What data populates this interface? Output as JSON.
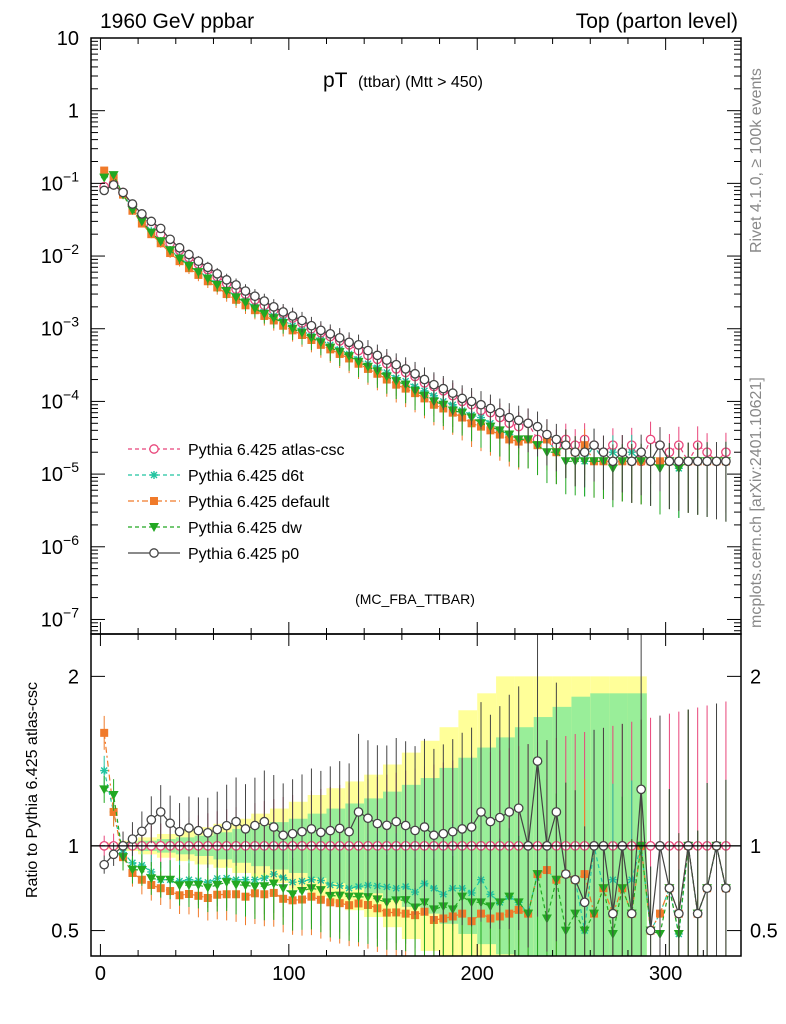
{
  "chart_data": {
    "type": "line",
    "header_left": "1960 GeV ppbar",
    "header_right": "Top (parton level)",
    "title_main": "pT",
    "title_sub": "(ttbar) (Mtt > 450)",
    "analysis_tag": "(MC_FBA_TTBAR)",
    "side_label_top": "Rivet 4.1.0, ≥ 100k events",
    "side_label_bottom": "mcplots.cern.ch [arXiv:2401.10621]",
    "ratio_ylabel": "Ratio to Pythia 6.425 atlas-csc",
    "xlim": [
      -5,
      340
    ],
    "top_ylim_log10": [
      -7.2,
      1
    ],
    "ratio_ylim": [
      0.35,
      2.25
    ],
    "x_ticks": [
      "0",
      "100",
      "200",
      "300"
    ],
    "x_tick_values": [
      0,
      100,
      200,
      300
    ],
    "y_ticks_top": [
      {
        "base": "10",
        "exp": "",
        "value": 1
      },
      {
        "base": "1",
        "exp": "",
        "value": 0
      },
      {
        "base": "10",
        "exp": "−1",
        "value": -1
      },
      {
        "base": "10",
        "exp": "−2",
        "value": -2
      },
      {
        "base": "10",
        "exp": "−3",
        "value": -3
      },
      {
        "base": "10",
        "exp": "−4",
        "value": -4
      },
      {
        "base": "10",
        "exp": "−5",
        "value": -5
      },
      {
        "base": "10",
        "exp": "−6",
        "value": -6
      },
      {
        "base": "10",
        "exp": "−7",
        "value": -7
      }
    ],
    "y_ticks_ratio": [
      {
        "label": "2",
        "value": 2
      },
      {
        "label": "1",
        "value": 1
      },
      {
        "label": "0.5",
        "value": 0.5
      }
    ],
    "x": [
      2,
      7,
      12,
      17,
      22,
      27,
      32,
      37,
      42,
      47,
      52,
      57,
      62,
      67,
      72,
      77,
      82,
      87,
      92,
      97,
      102,
      107,
      112,
      117,
      122,
      127,
      132,
      137,
      142,
      147,
      152,
      157,
      162,
      167,
      172,
      177,
      182,
      187,
      192,
      197,
      202,
      207,
      212,
      217,
      222,
      227,
      232,
      237,
      242,
      247,
      252,
      257,
      262,
      267,
      272,
      277,
      282,
      287,
      292,
      297,
      302,
      307,
      312,
      317,
      322,
      327,
      332
    ],
    "band_x": [
      0,
      10,
      20,
      30,
      40,
      50,
      60,
      70,
      80,
      90,
      100,
      110,
      120,
      130,
      140,
      150,
      160,
      170,
      180,
      190,
      200,
      210,
      220,
      230,
      240,
      250,
      260,
      270,
      280
    ],
    "band_yellow": [
      0.02,
      0.03,
      0.05,
      0.07,
      0.09,
      0.11,
      0.13,
      0.16,
      0.19,
      0.22,
      0.26,
      0.3,
      0.34,
      0.38,
      0.42,
      0.48,
      0.55,
      0.62,
      0.7,
      0.8,
      0.9,
      1.0,
      1.0,
      1.0,
      1.0,
      1.0,
      1.0,
      1.0,
      1.0
    ],
    "band_green": [
      0.01,
      0.02,
      0.03,
      0.04,
      0.05,
      0.06,
      0.08,
      0.1,
      0.12,
      0.14,
      0.16,
      0.19,
      0.22,
      0.25,
      0.28,
      0.32,
      0.36,
      0.4,
      0.46,
      0.52,
      0.58,
      0.64,
      0.7,
      0.76,
      0.82,
      0.88,
      0.9,
      0.9,
      0.9
    ],
    "series": [
      {
        "name": "Pythia 6.425 atlas-csc",
        "color": "#e8457a",
        "marker": "circle-open",
        "dash": "4,3",
        "values": [
          0.09,
          0.1,
          0.075,
          0.05,
          0.035,
          0.026,
          0.02,
          0.015,
          0.012,
          0.0095,
          0.0078,
          0.0065,
          0.0052,
          0.0042,
          0.0035,
          0.003,
          0.0025,
          0.0021,
          0.0018,
          0.0016,
          0.0014,
          0.0012,
          0.001,
          0.00088,
          0.00078,
          0.00068,
          0.0006,
          0.0005,
          0.00043,
          0.00038,
          0.00033,
          0.00028,
          0.00025,
          0.00022,
          0.00018,
          0.00016,
          0.00014,
          0.00012,
          0.0001,
          9e-05,
          7.5e-05,
          7e-05,
          6e-05,
          5e-05,
          4.5e-05,
          5e-05,
          3e-05,
          3.5e-05,
          2.5e-05,
          3e-05,
          2.5e-05,
          3e-05,
          2.5e-05,
          2e-05,
          2.5e-05,
          2e-05,
          2.5e-05,
          1.5e-05,
          3e-05,
          2.5e-05,
          2e-05,
          2.5e-05,
          1.5e-05,
          2.5e-05,
          2e-05,
          1.5e-05,
          2e-05
        ]
      },
      {
        "name": "Pythia 6.425 d6t",
        "color": "#22c4a0",
        "marker": "star",
        "dash": "4,3",
        "values": [
          0.13,
          0.12,
          0.072,
          0.045,
          0.031,
          0.022,
          0.016,
          0.012,
          0.0095,
          0.0076,
          0.0062,
          0.0051,
          0.0042,
          0.0034,
          0.0028,
          0.0024,
          0.002,
          0.0017,
          0.0015,
          0.0013,
          0.0011,
          0.00095,
          0.0008,
          0.0007,
          0.0006,
          0.00052,
          0.00045,
          0.00038,
          0.00033,
          0.00029,
          0.00025,
          0.00021,
          0.00019,
          0.00016,
          0.00014,
          0.00012,
          0.0001,
          9e-05,
          7.5e-05,
          6.5e-05,
          6e-05,
          5e-05,
          4e-05,
          3.5e-05,
          3e-05,
          3e-05,
          2.5e-05,
          3e-05,
          2e-05,
          2.5e-05,
          2e-05,
          1.5e-05,
          2.5e-05,
          1.5e-05,
          2e-05,
          1.5e-05,
          2e-05,
          1.5e-05,
          1.5e-05,
          1.5e-05,
          1.5e-05,
          1.2e-05,
          1.5e-05,
          1.5e-05,
          1.5e-05,
          1.5e-05,
          1.5e-05
        ]
      },
      {
        "name": "Pythia 6.425 default",
        "color": "#f07a2a",
        "marker": "square",
        "dash": "6,3,2,3",
        "values": [
          0.15,
          0.12,
          0.07,
          0.042,
          0.028,
          0.02,
          0.015,
          0.011,
          0.0085,
          0.0068,
          0.0055,
          0.0045,
          0.0037,
          0.003,
          0.0025,
          0.0021,
          0.0018,
          0.0015,
          0.0013,
          0.0011,
          0.00095,
          0.00082,
          0.0007,
          0.0006,
          0.00052,
          0.00045,
          0.00039,
          0.00033,
          0.00028,
          0.00024,
          0.0002,
          0.00017,
          0.00015,
          0.00013,
          0.00011,
          9e-05,
          8e-05,
          7e-05,
          6e-05,
          5e-05,
          4.5e-05,
          4e-05,
          3.5e-05,
          3e-05,
          2.8e-05,
          3e-05,
          2.5e-05,
          3e-05,
          2e-05,
          2.5e-05,
          2e-05,
          2.5e-05,
          1.5e-05,
          1.5e-05,
          1.5e-05,
          1.5e-05,
          1.5e-05,
          1.5e-05,
          1.5e-05,
          1.5e-05,
          1.5e-05,
          1.5e-05,
          1.5e-05,
          1.5e-05,
          1.5e-05,
          1.5e-05,
          1.5e-05
        ]
      },
      {
        "name": "Pythia 6.425 dw",
        "color": "#22a822",
        "marker": "triangle-down",
        "dash": "4,3",
        "values": [
          0.12,
          0.13,
          0.07,
          0.043,
          0.03,
          0.021,
          0.016,
          0.012,
          0.0092,
          0.0073,
          0.006,
          0.0049,
          0.004,
          0.0033,
          0.0027,
          0.0023,
          0.0019,
          0.0016,
          0.0014,
          0.0012,
          0.001,
          0.00088,
          0.00075,
          0.00065,
          0.00055,
          0.00048,
          0.00042,
          0.00035,
          0.0003,
          0.00026,
          0.00022,
          0.00019,
          0.00017,
          0.00014,
          0.00012,
          0.0001,
          9e-05,
          7.5e-05,
          7e-05,
          6e-05,
          5e-05,
          4.5e-05,
          4e-05,
          3.5e-05,
          3e-05,
          3e-05,
          2.5e-05,
          2e-05,
          2e-05,
          1.5e-05,
          1.5e-05,
          1.5e-05,
          1.5e-05,
          1.5e-05,
          1.2e-05,
          1.5e-05,
          1.5e-05,
          1.5e-05,
          1.5e-05,
          1.2e-05,
          1.5e-05,
          1.2e-05,
          1.5e-05,
          1.5e-05,
          1.5e-05,
          1.5e-05,
          1.5e-05
        ]
      },
      {
        "name": "Pythia 6.425 p0",
        "color": "#444444",
        "marker": "circle-open",
        "dash": "",
        "values": [
          0.08,
          0.095,
          0.075,
          0.052,
          0.038,
          0.03,
          0.024,
          0.017,
          0.013,
          0.0105,
          0.0085,
          0.007,
          0.0057,
          0.0047,
          0.004,
          0.0033,
          0.0028,
          0.0024,
          0.002,
          0.0017,
          0.0015,
          0.0013,
          0.0011,
          0.00095,
          0.00085,
          0.00075,
          0.00065,
          0.0006,
          0.0005,
          0.00043,
          0.00037,
          0.00032,
          0.00028,
          0.00024,
          0.0002,
          0.00017,
          0.00015,
          0.00013,
          0.00011,
          0.0001,
          9e-05,
          8e-05,
          7e-05,
          6e-05,
          5.5e-05,
          5e-05,
          4.5e-05,
          3.5e-05,
          3e-05,
          2.5e-05,
          2e-05,
          2e-05,
          2.5e-05,
          2e-05,
          1.5e-05,
          2e-05,
          1.5e-05,
          2e-05,
          1.5e-05,
          2.5e-05,
          1.5e-05,
          1.5e-05,
          1.5e-05,
          1.5e-05,
          1.5e-05,
          1.5e-05,
          1.5e-05
        ]
      }
    ]
  }
}
